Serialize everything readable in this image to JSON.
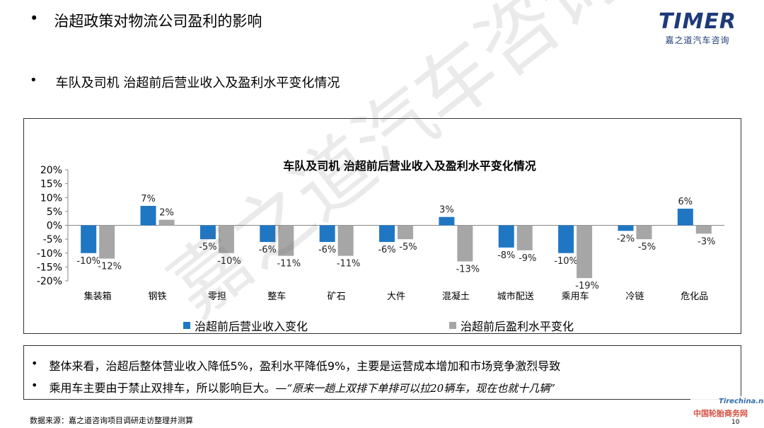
{
  "header": {
    "bullet": "•",
    "title": "治超政策对物流公司盈利的影响",
    "subtitle": "车队及司机 治超前后营业收入及盈利水平变化情况"
  },
  "logo": {
    "word": "TIMER",
    "cn": "嘉之道汽车咨询"
  },
  "watermark": "嘉之道汽车咨询",
  "chart_data": {
    "type": "bar",
    "title": "车队及司机 治超前后营业收入及盈利水平变化情况",
    "categories": [
      "集装箱",
      "钢铁",
      "零担",
      "整车",
      "矿石",
      "大件",
      "混凝土",
      "城市配送",
      "乘用车",
      "冷链",
      "危化品"
    ],
    "series": [
      {
        "name": "治超前后营业收入变化",
        "color": "#1f77c4",
        "values": [
          -10,
          7,
          -5,
          -6,
          -6,
          -6,
          3,
          -8,
          -10,
          -2,
          6
        ],
        "labels": [
          "-10%",
          "7%",
          "-5%",
          "-6%",
          "-6%",
          "-6%",
          "3%",
          "-8%",
          "-10%",
          "-2%",
          "6%"
        ]
      },
      {
        "name": "治超前后盈利水平变化",
        "color": "#a6a6a6",
        "values": [
          -12,
          2,
          -10,
          -11,
          -11,
          -5,
          -13,
          -9,
          -19,
          -5,
          -3
        ],
        "labels": [
          "-12%",
          "2%",
          "-10%",
          "-11%",
          "-11%",
          "-5%",
          "-13%",
          "-9%",
          "-19%",
          "-5%",
          "-3%"
        ]
      }
    ],
    "ylim": [
      -20,
      20
    ],
    "yticks": [
      "20%",
      "15%",
      "10%",
      "5%",
      "0%",
      "-5%",
      "-10%",
      "-15%",
      "-20%"
    ],
    "xlabel": "",
    "ylabel": "",
    "legend": "bottom"
  },
  "notes": {
    "bullet": "•",
    "line1": "整体来看，治超后整体营业收入降低5%，盈利水平降低9%，主要是运营成本增加和市场竞争激烈导致",
    "line2_prefix": "乘用车主要由于禁止双排车，所以影响巨大。—",
    "line2_quote": "“原来一趟上双排下单排可以拉20辆车，现在也就十几辆”"
  },
  "footer": {
    "source": "数据来源：嘉之道咨询项目调研走访整理并测算",
    "page": "10",
    "site_name": "中国轮胎商务网",
    "site_domain": "Tirechina.net"
  }
}
